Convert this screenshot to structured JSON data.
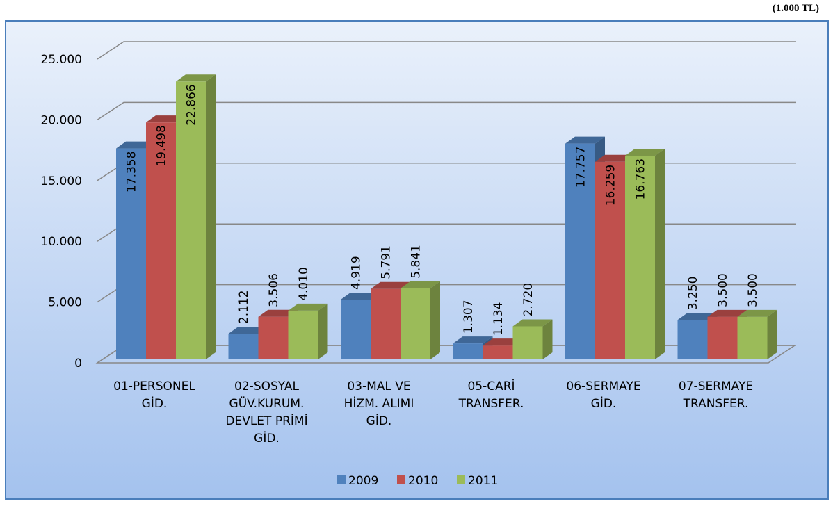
{
  "chart_data": {
    "type": "bar3d",
    "unit_note": "(1.000 TL)",
    "categories": [
      "01-PERSONEL GİD.",
      "02-SOSYAL GÜV.KURUM. DEVLET PRİMİ GİD.",
      "03-MAL VE HİZM. ALIMI GİD.",
      "05-CARİ TRANSFER.",
      "06-SERMAYE GİD.",
      "07-SERMAYE TRANSFER."
    ],
    "series": [
      {
        "name": "2009",
        "color": "#4f81bd",
        "values": [
          17358,
          2112,
          4919,
          1307,
          17757,
          3250
        ],
        "value_labels": [
          "17.358",
          "2.112",
          "4.919",
          "1.307",
          "17.757",
          "3.250"
        ]
      },
      {
        "name": "2010",
        "color": "#c0504d",
        "values": [
          19498,
          3506,
          5791,
          1134,
          16259,
          3500
        ],
        "value_labels": [
          "19.498",
          "3.506",
          "5.791",
          "1.134",
          "16.259",
          "3.500"
        ]
      },
      {
        "name": "2011",
        "color": "#9bbb59",
        "values": [
          22866,
          4010,
          5841,
          2720,
          16763,
          3500
        ],
        "value_labels": [
          "22.866",
          "4.010",
          "5.841",
          "2.720",
          "16.763",
          "3.500"
        ]
      }
    ],
    "ylim": [
      0,
      25000
    ],
    "yticks": [
      0,
      {
        "value": 5000,
        "label": "5.000"
      },
      {
        "value": 10000,
        "label": "10.000"
      },
      {
        "value": 15000,
        "label": "15.000"
      },
      {
        "value": 20000,
        "label": "20.000"
      },
      {
        "value": 25000,
        "label": "25.000"
      }
    ],
    "grid": true,
    "legend": "bottom"
  }
}
